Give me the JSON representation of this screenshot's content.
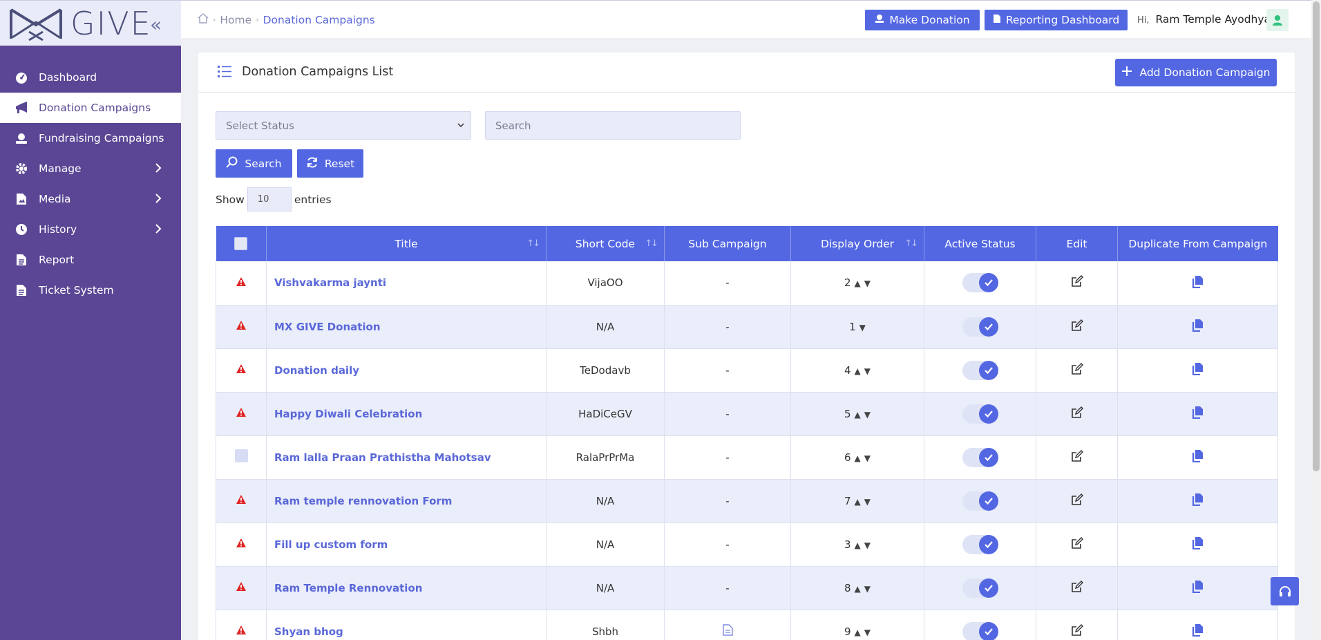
{
  "brand": {
    "logo_text": "GIVE",
    "collapse_icon": "double-chevron-left-icon"
  },
  "sidebar": {
    "items": [
      {
        "label": "Dashboard",
        "icon": "gauge-icon"
      },
      {
        "label": "Donation Campaigns",
        "icon": "megaphone-icon",
        "active": true
      },
      {
        "label": "Fundraising Campaigns",
        "icon": "donation-icon"
      },
      {
        "label": "Manage",
        "icon": "gear-icon",
        "has_children": true
      },
      {
        "label": "Media",
        "icon": "file-image-icon",
        "has_children": true
      },
      {
        "label": "History",
        "icon": "clock-icon",
        "has_children": true
      },
      {
        "label": "Report",
        "icon": "file-text-icon"
      },
      {
        "label": "Ticket System",
        "icon": "file-text-icon"
      }
    ]
  },
  "topbar": {
    "breadcrumb": {
      "home": "Home",
      "current": "Donation Campaigns"
    },
    "make_donation": "Make Donation",
    "reporting_dashboard": "Reporting Dashboard",
    "greeting": "Hi,",
    "user_name": "Ram Temple Ayodhya"
  },
  "card": {
    "title": "Donation Campaigns List",
    "add_button": "Add Donation Campaign"
  },
  "filters": {
    "status_placeholder": "Select Status",
    "search_placeholder": "Search",
    "search_button": "Search",
    "reset_button": "Reset",
    "show_label": "Show",
    "page_size": "10",
    "entries_label": "entries"
  },
  "table": {
    "headers": {
      "title": "Title",
      "short_code": "Short Code",
      "sub_campaign": "Sub Campaign",
      "display_order": "Display Order",
      "active_status": "Active Status",
      "edit": "Edit",
      "duplicate": "Duplicate From Campaign"
    },
    "rows": [
      {
        "status_icon": "warning",
        "title": "Vishvakarma jaynti",
        "short_code": "VijaOO",
        "sub_campaign": "-",
        "order": "2",
        "up": true,
        "down": true,
        "active": true
      },
      {
        "status_icon": "warning",
        "title": "MX GIVE Donation",
        "short_code": "N/A",
        "sub_campaign": "-",
        "order": "1",
        "up": false,
        "down": true,
        "active": true
      },
      {
        "status_icon": "warning",
        "title": "Donation daily",
        "short_code": "TeDodavb",
        "sub_campaign": "-",
        "order": "4",
        "up": true,
        "down": true,
        "active": true
      },
      {
        "status_icon": "warning",
        "title": "Happy Diwali Celebration",
        "short_code": "HaDiCeGV",
        "sub_campaign": "-",
        "order": "5",
        "up": true,
        "down": true,
        "active": true
      },
      {
        "status_icon": "checkbox",
        "title": "Ram lalla Praan Prathistha Mahotsav",
        "short_code": "RalaPrPrMa",
        "sub_campaign": "-",
        "order": "6",
        "up": true,
        "down": true,
        "active": true
      },
      {
        "status_icon": "warning",
        "title": "Ram temple rennovation Form",
        "short_code": "N/A",
        "sub_campaign": "-",
        "order": "7",
        "up": true,
        "down": true,
        "active": true
      },
      {
        "status_icon": "warning",
        "title": "Fill up custom form",
        "short_code": "N/A",
        "sub_campaign": "-",
        "order": "3",
        "up": true,
        "down": true,
        "active": true
      },
      {
        "status_icon": "warning",
        "title": "Ram Temple Rennovation",
        "short_code": "N/A",
        "sub_campaign": "-",
        "order": "8",
        "up": true,
        "down": true,
        "active": true
      },
      {
        "status_icon": "warning",
        "title": "Shyan bhog",
        "short_code": "Shbh",
        "sub_campaign": "doc-icon",
        "order": "9",
        "up": true,
        "down": true,
        "active": true
      }
    ]
  },
  "colors": {
    "sidebar": "#5a4694",
    "accent": "#5367e2",
    "warning": "#e02424"
  }
}
